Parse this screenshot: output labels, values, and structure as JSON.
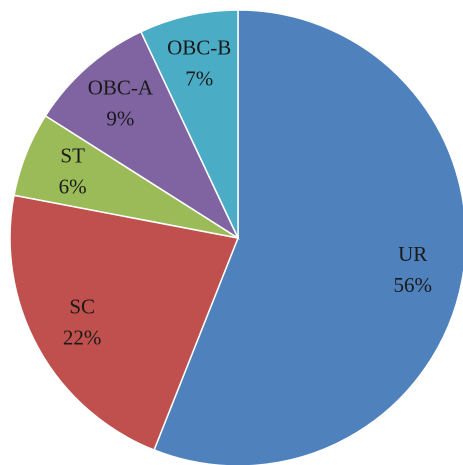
{
  "chart_data": {
    "type": "pie",
    "categories": [
      "UR",
      "SC",
      "ST",
      "OBC-A",
      "OBC-B"
    ],
    "values": [
      56,
      22,
      6,
      9,
      7
    ],
    "value_labels": [
      "56%",
      "22%",
      "6%",
      "9%",
      "7%"
    ],
    "colors": [
      "#4f81bd",
      "#c0504d",
      "#9bbb59",
      "#8064a2",
      "#4bacc6"
    ]
  }
}
